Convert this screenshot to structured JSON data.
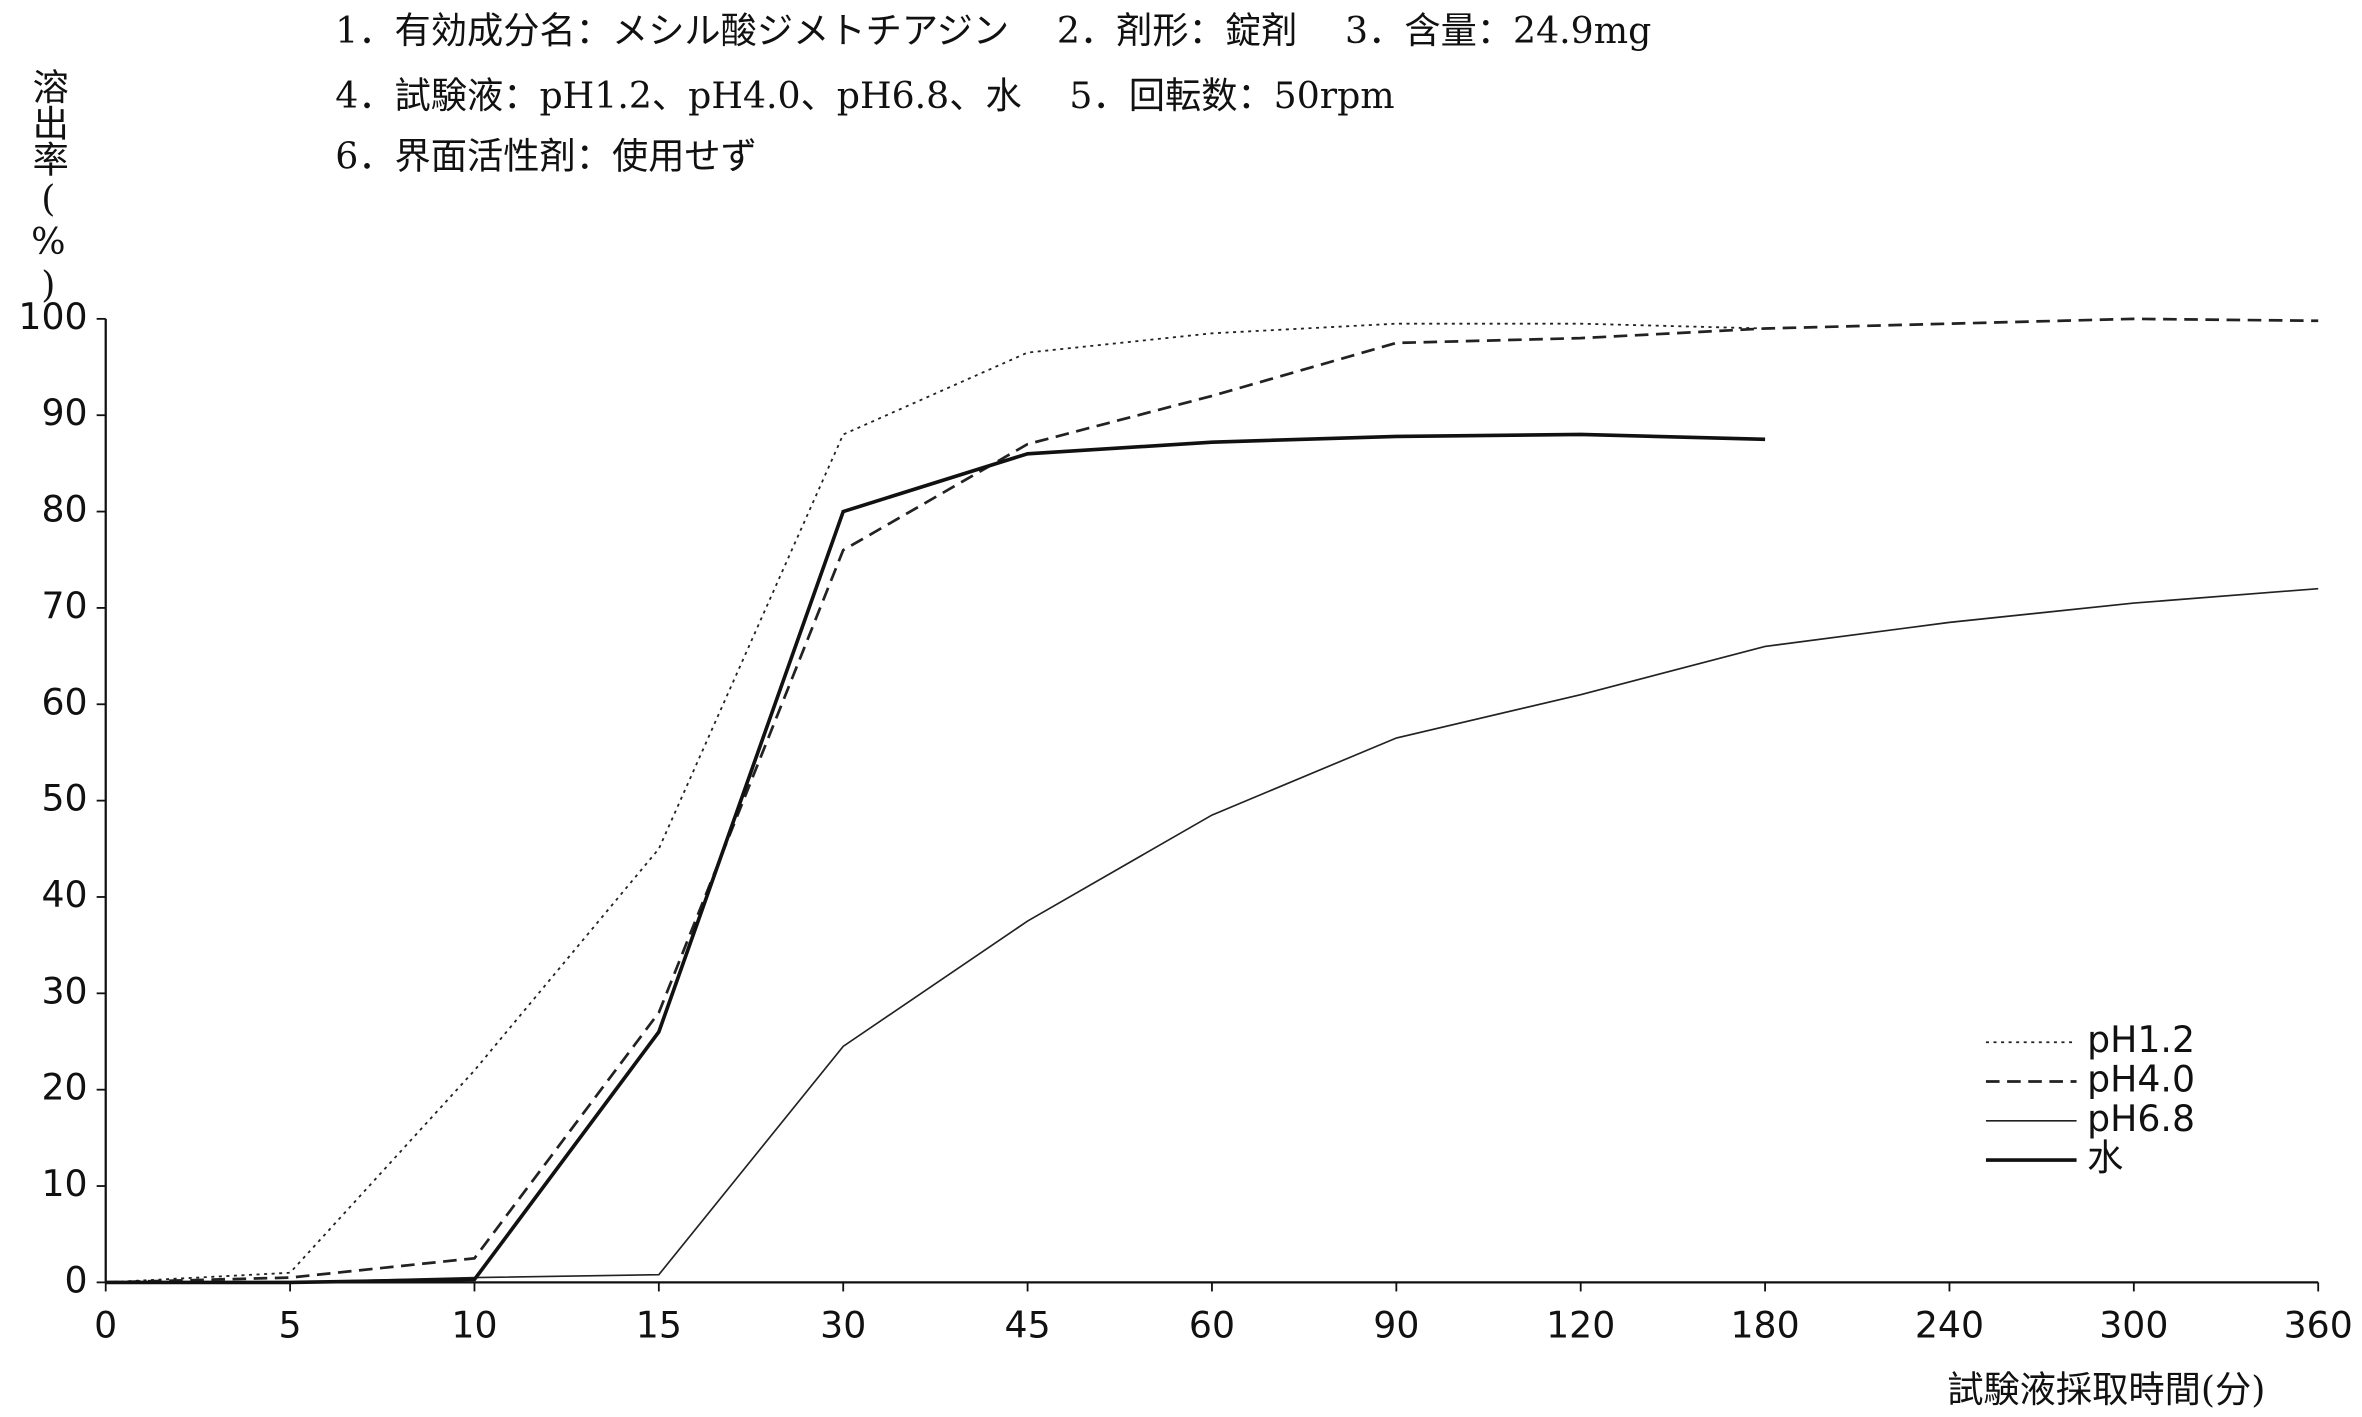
{
  "chart_data": {
    "type": "line",
    "header": [
      "1．有効成分名：メシル酸ジメトチアジン　 2．剤形：錠剤　 3．含量：24.9mg",
      "4．試験液：pH1.2、pH4.0、pH6.8、水　 5．回転数：50rpm",
      "6．界面活性剤：使用せず"
    ],
    "ylabel": "溶出率(%)",
    "xlabel": "試験液採取時間(分)",
    "categories": [
      "0",
      "5",
      "10",
      "15",
      "30",
      "45",
      "60",
      "90",
      "120",
      "180",
      "240",
      "300",
      "360"
    ],
    "ylim": [
      0,
      100
    ],
    "yticks": [
      0,
      10,
      20,
      30,
      40,
      50,
      60,
      70,
      80,
      90,
      100
    ],
    "legend": "lower right",
    "series": [
      {
        "name": "pH1.2",
        "color": "#222222",
        "dash": "2,3",
        "width": 1.2,
        "values": [
          0,
          1,
          22,
          45,
          88,
          96.5,
          98.5,
          99.5,
          99.5,
          99,
          null,
          null,
          null
        ]
      },
      {
        "name": "pH4.0",
        "color": "#222222",
        "dash": "9,5",
        "width": 1.8,
        "values": [
          0,
          0.5,
          2.5,
          28,
          76,
          87,
          92,
          97.5,
          98,
          99,
          99.5,
          100,
          99.8
        ]
      },
      {
        "name": "pH6.8",
        "color": "#222222",
        "dash": "none",
        "width": 1.1,
        "values": [
          0,
          0,
          0.5,
          0.8,
          24.5,
          37.5,
          48.5,
          56.5,
          61,
          66,
          68.5,
          70.5,
          72
        ]
      },
      {
        "name": "水",
        "color": "#111111",
        "dash": "none",
        "width": 2.4,
        "values": [
          0,
          0,
          0.3,
          26,
          80,
          86,
          87.2,
          87.8,
          88,
          87.5,
          null,
          null,
          null
        ]
      }
    ]
  }
}
